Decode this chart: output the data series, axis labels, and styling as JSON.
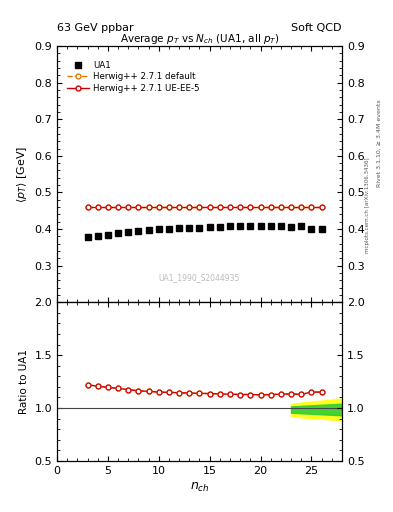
{
  "title_top_left": "63 GeV ppbar",
  "title_top_right": "Soft QCD",
  "main_title": "Average $p_T$ vs $N_{ch}$ (UA1, all $p_T$)",
  "right_label_top": "Rivet 3.1.10, ≥ 3.4M events",
  "right_label_bottom": "mcplots.cern.ch [arXiv:1306.3436]",
  "watermark": "UA1_1990_S2044935",
  "ylabel_main": "$\\langle p_T \\rangle$ [GeV]",
  "ylabel_ratio": "Ratio to UA1",
  "xlabel": "$n_{ch}$",
  "ylim_main": [
    0.2,
    0.9
  ],
  "ylim_ratio": [
    0.5,
    2.0
  ],
  "yticks_main": [
    0.3,
    0.4,
    0.5,
    0.6,
    0.7,
    0.8,
    0.9
  ],
  "yticks_ratio": [
    0.5,
    1.0,
    1.5,
    2.0
  ],
  "xlim": [
    0,
    28
  ],
  "xticks": [
    0,
    5,
    10,
    15,
    20,
    25
  ],
  "ua1_x": [
    3,
    4,
    5,
    6,
    7,
    8,
    9,
    10,
    11,
    12,
    13,
    14,
    15,
    16,
    17,
    18,
    19,
    20,
    21,
    22,
    23,
    24,
    25,
    26
  ],
  "ua1_y": [
    0.378,
    0.382,
    0.385,
    0.388,
    0.392,
    0.396,
    0.398,
    0.4,
    0.401,
    0.402,
    0.403,
    0.404,
    0.405,
    0.406,
    0.407,
    0.408,
    0.408,
    0.409,
    0.408,
    0.407,
    0.406,
    0.408,
    0.4,
    0.4
  ],
  "herwig_default_x": [
    3,
    4,
    5,
    6,
    7,
    8,
    9,
    10,
    11,
    12,
    13,
    14,
    15,
    16,
    17,
    18,
    19,
    20,
    21,
    22,
    23,
    24,
    25,
    26
  ],
  "herwig_default_y": [
    0.46,
    0.46,
    0.46,
    0.46,
    0.46,
    0.46,
    0.46,
    0.46,
    0.46,
    0.46,
    0.46,
    0.46,
    0.46,
    0.46,
    0.46,
    0.46,
    0.46,
    0.46,
    0.46,
    0.46,
    0.46,
    0.46,
    0.46,
    0.46
  ],
  "herwig_default_color": "#e87800",
  "herwig_ue_x": [
    3,
    4,
    5,
    6,
    7,
    8,
    9,
    10,
    11,
    12,
    13,
    14,
    15,
    16,
    17,
    18,
    19,
    20,
    21,
    22,
    23,
    24,
    25,
    26
  ],
  "herwig_ue_y": [
    0.46,
    0.46,
    0.46,
    0.46,
    0.46,
    0.46,
    0.46,
    0.46,
    0.46,
    0.46,
    0.46,
    0.46,
    0.46,
    0.46,
    0.46,
    0.46,
    0.46,
    0.46,
    0.46,
    0.46,
    0.46,
    0.46,
    0.46,
    0.46
  ],
  "herwig_ue_color": "#cc0000",
  "ratio_x": [
    3,
    4,
    5,
    6,
    7,
    8,
    9,
    10,
    11,
    12,
    13,
    14,
    15,
    16,
    17,
    18,
    19,
    20,
    21,
    22,
    23,
    24,
    25,
    26
  ],
  "ratio_default_y": [
    1.218,
    1.206,
    1.195,
    1.185,
    1.173,
    1.162,
    1.157,
    1.15,
    1.147,
    1.144,
    1.141,
    1.138,
    1.136,
    1.133,
    1.13,
    1.127,
    1.127,
    1.124,
    1.127,
    1.13,
    1.133,
    1.128,
    1.15,
    1.15
  ],
  "ratio_ue_y": [
    1.218,
    1.206,
    1.195,
    1.185,
    1.173,
    1.162,
    1.157,
    1.15,
    1.147,
    1.144,
    1.141,
    1.138,
    1.136,
    1.133,
    1.13,
    1.127,
    1.127,
    1.124,
    1.127,
    1.13,
    1.133,
    1.128,
    1.15,
    1.15
  ],
  "green_fill_x": [
    23,
    24,
    25,
    26,
    27,
    28
  ],
  "green_fill_y_low": [
    0.955,
    0.95,
    0.945,
    0.94,
    0.935,
    0.93
  ],
  "green_fill_y_high": [
    1.015,
    1.02,
    1.025,
    1.03,
    1.035,
    1.04
  ],
  "yellow_fill_x": [
    23,
    24,
    25,
    26,
    27,
    28
  ],
  "yellow_fill_y_low": [
    0.92,
    0.912,
    0.905,
    0.898,
    0.89,
    0.885
  ],
  "yellow_fill_y_high": [
    1.04,
    1.05,
    1.06,
    1.07,
    1.08,
    1.09
  ]
}
